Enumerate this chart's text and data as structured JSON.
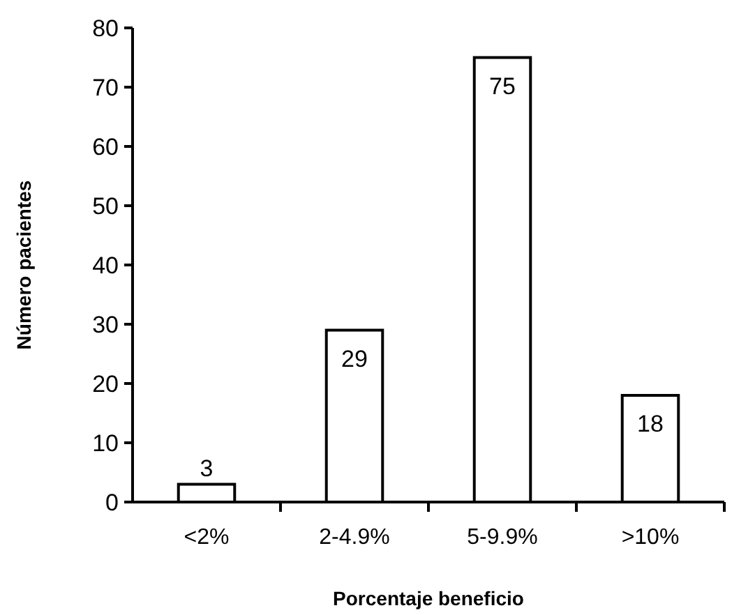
{
  "chart_data": {
    "type": "bar",
    "xlabel": "Porcentaje beneficio",
    "ylabel": "Número pacientes",
    "categories": [
      "<2%",
      "2-4.9%",
      "5-9.9%",
      ">10%"
    ],
    "values": [
      3,
      29,
      75,
      18
    ],
    "color": "#ffffff",
    "ylim": [
      0,
      80
    ],
    "yticks": [
      0,
      10,
      20,
      30,
      40,
      50,
      60,
      70,
      80
    ],
    "grid": false,
    "data_labels": true
  }
}
